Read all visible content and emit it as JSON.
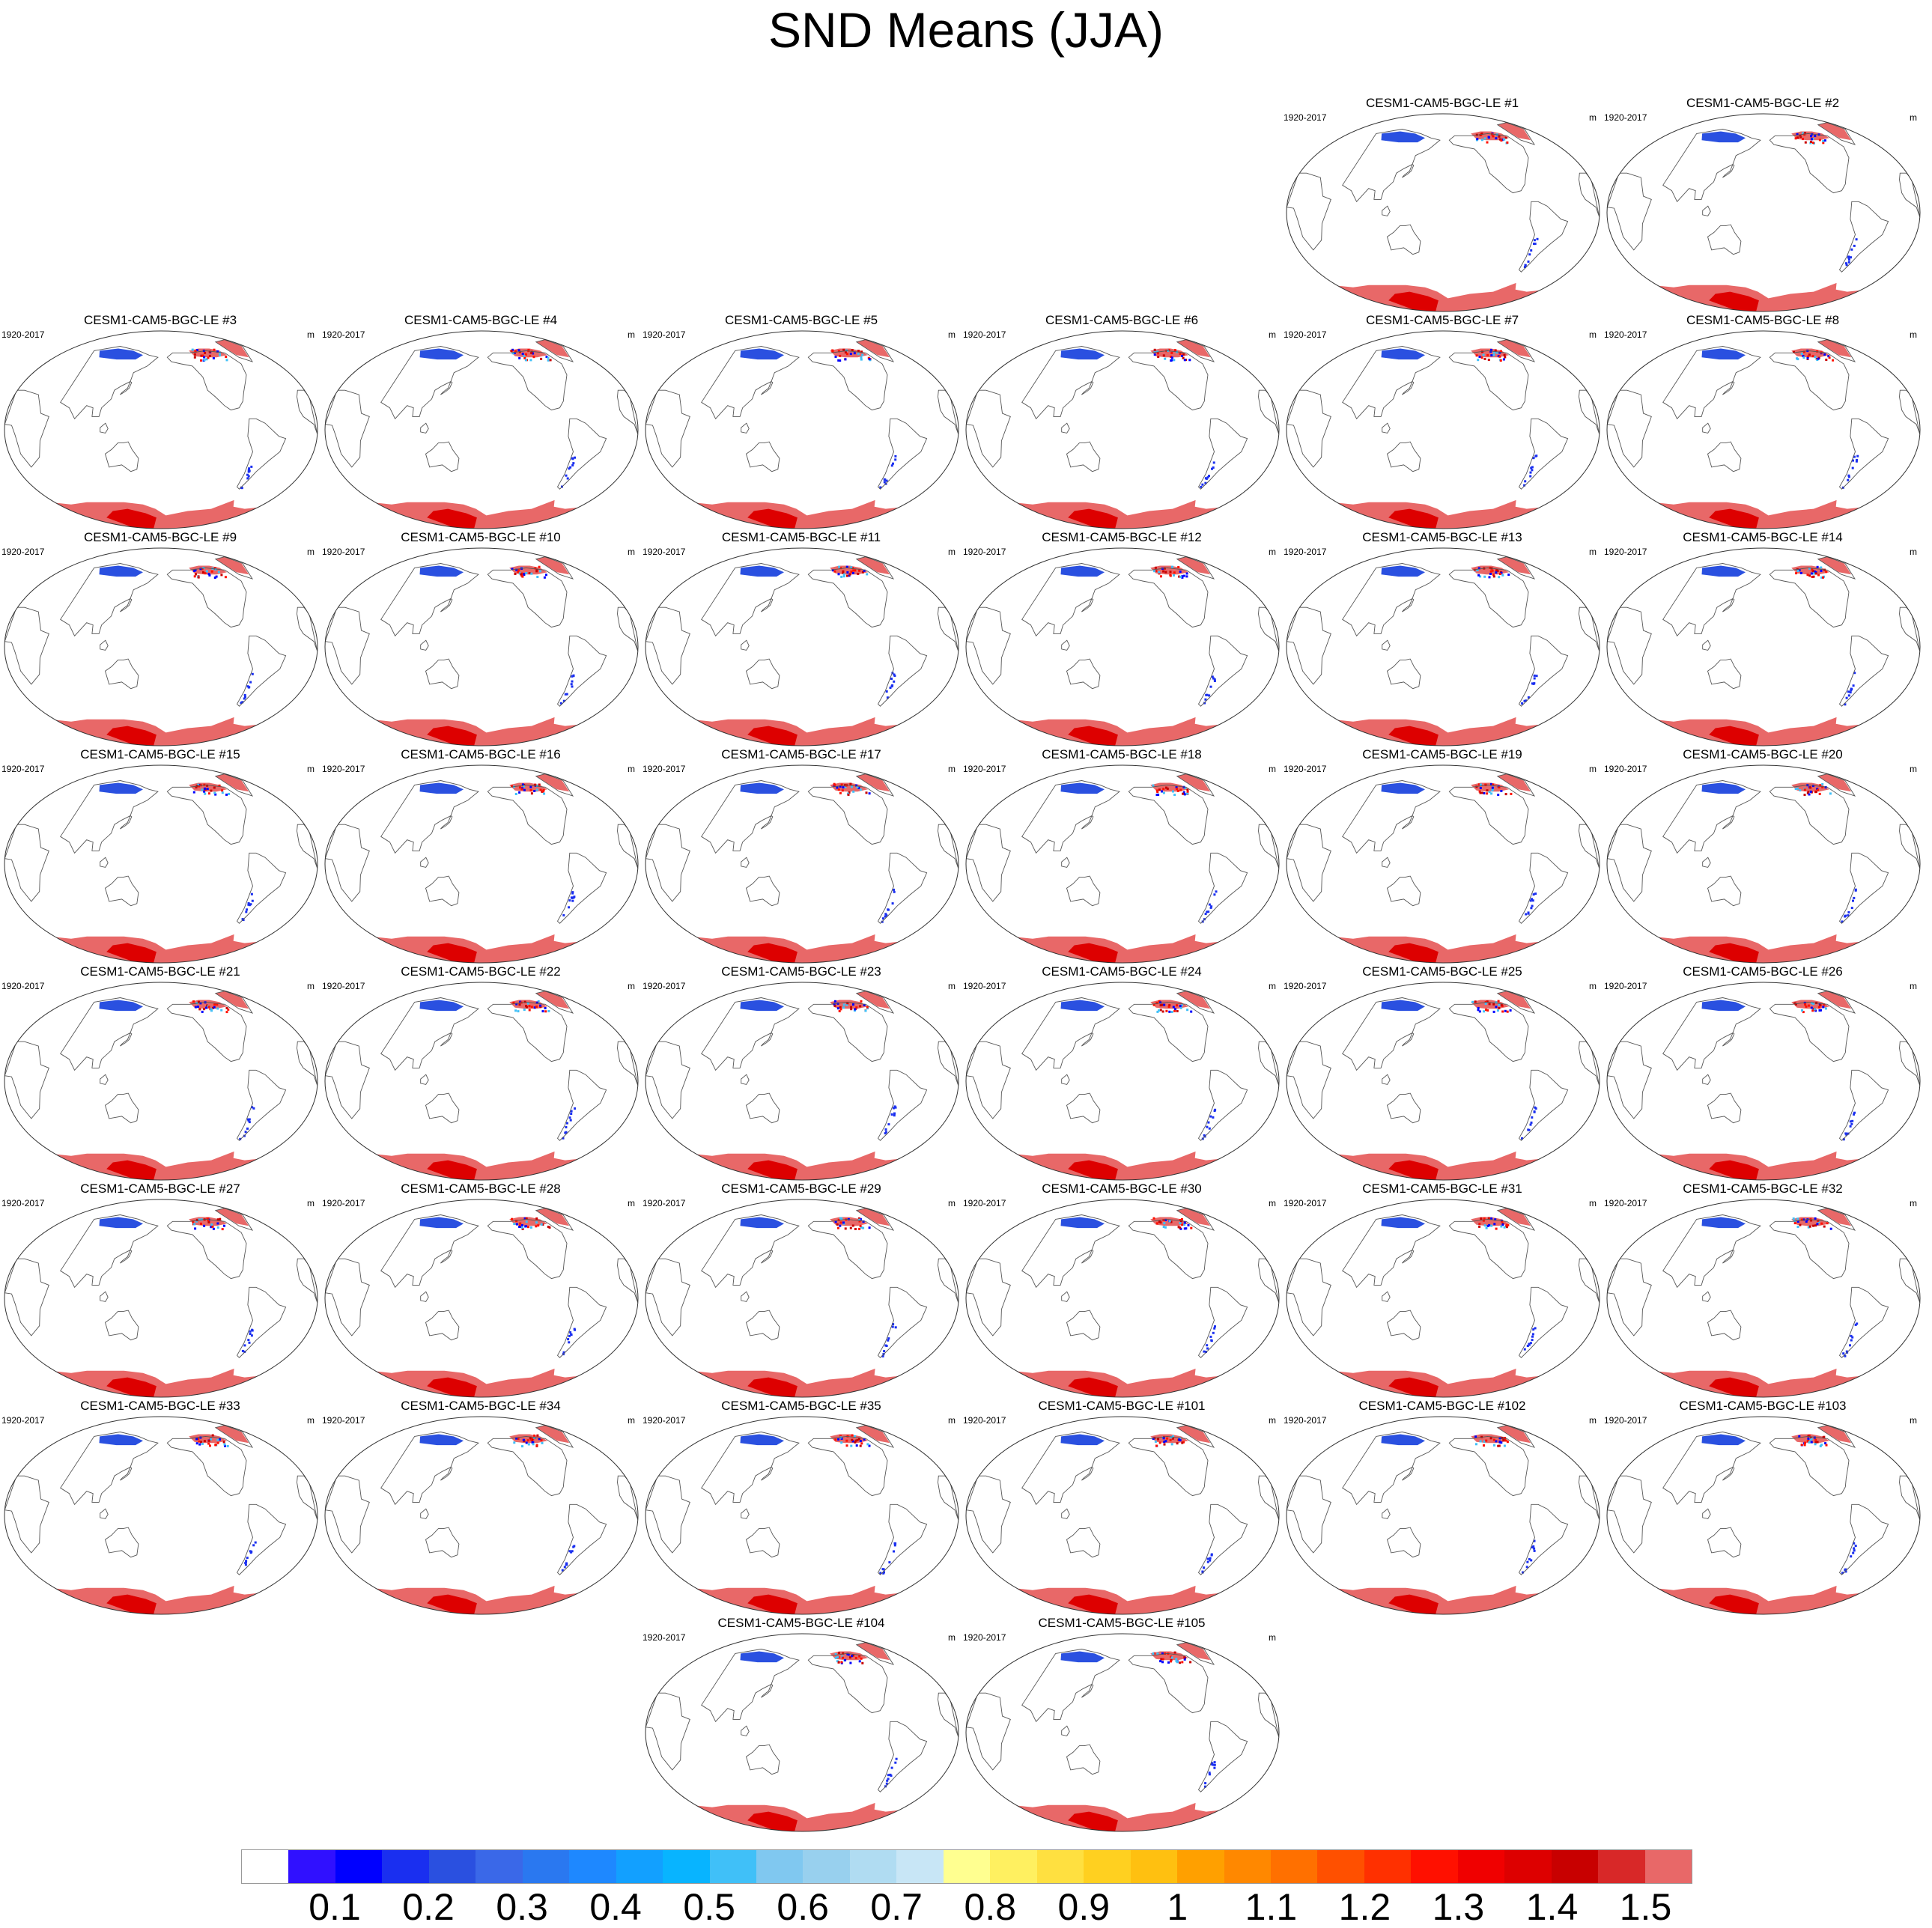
{
  "title": "SND Means (JJA)",
  "panels": [
    {
      "title": "CESM1-CAM5-BGC-LE #1",
      "period": "1920-2017",
      "units": "m"
    },
    {
      "title": "CESM1-CAM5-BGC-LE #2",
      "period": "1920-2017",
      "units": "m"
    },
    {
      "title": "CESM1-CAM5-BGC-LE #3",
      "period": "1920-2017",
      "units": "m"
    },
    {
      "title": "CESM1-CAM5-BGC-LE #4",
      "period": "1920-2017",
      "units": "m"
    },
    {
      "title": "CESM1-CAM5-BGC-LE #5",
      "period": "1920-2017",
      "units": "m"
    },
    {
      "title": "CESM1-CAM5-BGC-LE #6",
      "period": "1920-2017",
      "units": "m"
    },
    {
      "title": "CESM1-CAM5-BGC-LE #7",
      "period": "1920-2017",
      "units": "m"
    },
    {
      "title": "CESM1-CAM5-BGC-LE #8",
      "period": "1920-2017",
      "units": "m"
    },
    {
      "title": "CESM1-CAM5-BGC-LE #9",
      "period": "1920-2017",
      "units": "m"
    },
    {
      "title": "CESM1-CAM5-BGC-LE #10",
      "period": "1920-2017",
      "units": "m"
    },
    {
      "title": "CESM1-CAM5-BGC-LE #11",
      "period": "1920-2017",
      "units": "m"
    },
    {
      "title": "CESM1-CAM5-BGC-LE #12",
      "period": "1920-2017",
      "units": "m"
    },
    {
      "title": "CESM1-CAM5-BGC-LE #13",
      "period": "1920-2017",
      "units": "m"
    },
    {
      "title": "CESM1-CAM5-BGC-LE #14",
      "period": "1920-2017",
      "units": "m"
    },
    {
      "title": "CESM1-CAM5-BGC-LE #15",
      "period": "1920-2017",
      "units": "m"
    },
    {
      "title": "CESM1-CAM5-BGC-LE #16",
      "period": "1920-2017",
      "units": "m"
    },
    {
      "title": "CESM1-CAM5-BGC-LE #17",
      "period": "1920-2017",
      "units": "m"
    },
    {
      "title": "CESM1-CAM5-BGC-LE #18",
      "period": "1920-2017",
      "units": "m"
    },
    {
      "title": "CESM1-CAM5-BGC-LE #19",
      "period": "1920-2017",
      "units": "m"
    },
    {
      "title": "CESM1-CAM5-BGC-LE #20",
      "period": "1920-2017",
      "units": "m"
    },
    {
      "title": "CESM1-CAM5-BGC-LE #21",
      "period": "1920-2017",
      "units": "m"
    },
    {
      "title": "CESM1-CAM5-BGC-LE #22",
      "period": "1920-2017",
      "units": "m"
    },
    {
      "title": "CESM1-CAM5-BGC-LE #23",
      "period": "1920-2017",
      "units": "m"
    },
    {
      "title": "CESM1-CAM5-BGC-LE #24",
      "period": "1920-2017",
      "units": "m"
    },
    {
      "title": "CESM1-CAM5-BGC-LE #25",
      "period": "1920-2017",
      "units": "m"
    },
    {
      "title": "CESM1-CAM5-BGC-LE #26",
      "period": "1920-2017",
      "units": "m"
    },
    {
      "title": "CESM1-CAM5-BGC-LE #27",
      "period": "1920-2017",
      "units": "m"
    },
    {
      "title": "CESM1-CAM5-BGC-LE #28",
      "period": "1920-2017",
      "units": "m"
    },
    {
      "title": "CESM1-CAM5-BGC-LE #29",
      "period": "1920-2017",
      "units": "m"
    },
    {
      "title": "CESM1-CAM5-BGC-LE #30",
      "period": "1920-2017",
      "units": "m"
    },
    {
      "title": "CESM1-CAM5-BGC-LE #31",
      "period": "1920-2017",
      "units": "m"
    },
    {
      "title": "CESM1-CAM5-BGC-LE #32",
      "period": "1920-2017",
      "units": "m"
    },
    {
      "title": "CESM1-CAM5-BGC-LE #33",
      "period": "1920-2017",
      "units": "m"
    },
    {
      "title": "CESM1-CAM5-BGC-LE #34",
      "period": "1920-2017",
      "units": "m"
    },
    {
      "title": "CESM1-CAM5-BGC-LE #35",
      "period": "1920-2017",
      "units": "m"
    },
    {
      "title": "CESM1-CAM5-BGC-LE #101",
      "period": "1920-2017",
      "units": "m"
    },
    {
      "title": "CESM1-CAM5-BGC-LE #102",
      "period": "1920-2017",
      "units": "m"
    },
    {
      "title": "CESM1-CAM5-BGC-LE #103",
      "period": "1920-2017",
      "units": "m"
    },
    {
      "title": "CESM1-CAM5-BGC-LE #104",
      "period": "1920-2017",
      "units": "m"
    },
    {
      "title": "CESM1-CAM5-BGC-LE #105",
      "period": "1920-2017",
      "units": "m"
    }
  ],
  "colorbar": {
    "colors": [
      "#ffffff",
      "#3010ff",
      "#0000ff",
      "#1a2ff0",
      "#2a50e0",
      "#3a68e8",
      "#2a78f0",
      "#1e88ff",
      "#12a0ff",
      "#08b4ff",
      "#40c0f8",
      "#80c8f0",
      "#98d0ee",
      "#b0dcf2",
      "#c8e6f6",
      "#ffff90",
      "#fff060",
      "#ffe040",
      "#ffd020",
      "#ffc010",
      "#ffa000",
      "#ff8800",
      "#ff7000",
      "#ff5000",
      "#ff3000",
      "#ff1000",
      "#f00000",
      "#dd0000",
      "#c80000",
      "#d82828",
      "#e86868"
    ],
    "tick_labels": [
      "0.1",
      "0.2",
      "0.3",
      "0.4",
      "0.5",
      "0.6",
      "0.7",
      "0.8",
      "0.9",
      "1",
      "1.1",
      "1.2",
      "1.3",
      "1.4",
      "1.5"
    ]
  }
}
